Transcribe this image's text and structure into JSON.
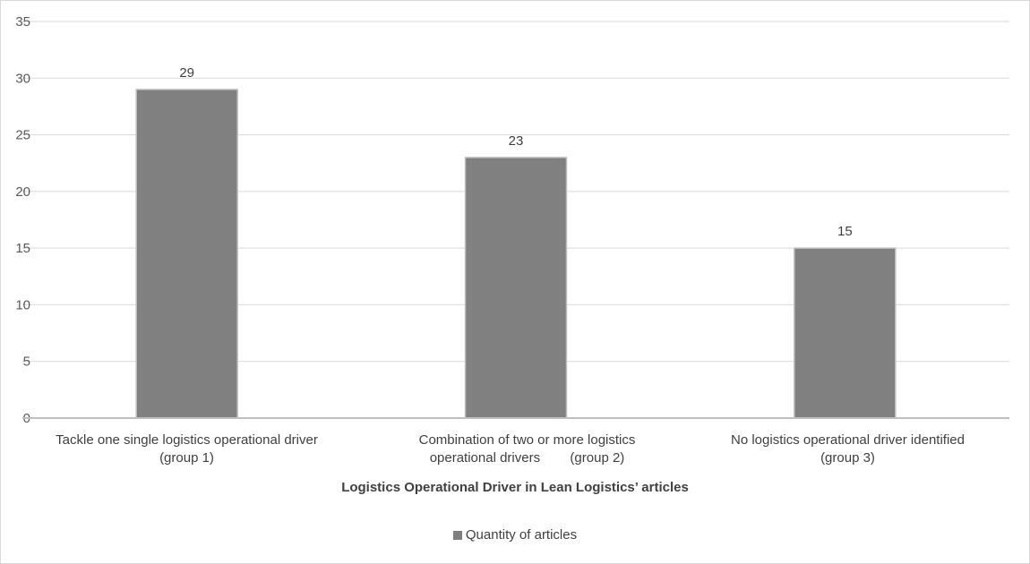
{
  "chart_data": {
    "type": "bar",
    "categories": [
      "Tackle one single logistics operational driver\n(group 1)",
      "Combination of two or more logistics\noperational drivers        (group 2)",
      "No logistics operational driver identified\n(group 3)"
    ],
    "series": [
      {
        "name": "Quantity of articles",
        "values": [
          29,
          23,
          15
        ],
        "color": "#808080"
      }
    ],
    "title": "",
    "xlabel": "Logistics Operational Driver in Lean Logistics’ articles",
    "ylabel": "",
    "ylim": [
      0,
      35
    ],
    "yticks": [
      0,
      5,
      10,
      15,
      20,
      25,
      30,
      35
    ],
    "grid": true,
    "legend": "bottom"
  }
}
